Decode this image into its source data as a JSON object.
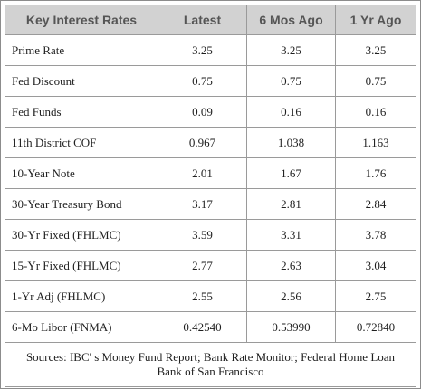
{
  "table": {
    "headers": [
      "Key Interest Rates",
      "Latest",
      "6 Mos Ago",
      "1 Yr Ago"
    ],
    "rows": [
      {
        "label": "Prime Rate",
        "latest": "3.25",
        "six_mos": "3.25",
        "one_yr": "3.25"
      },
      {
        "label": "Fed Discount",
        "latest": "0.75",
        "six_mos": "0.75",
        "one_yr": "0.75"
      },
      {
        "label": "Fed Funds",
        "latest": "0.09",
        "six_mos": "0.16",
        "one_yr": "0.16"
      },
      {
        "label": "11th District COF",
        "latest": "0.967",
        "six_mos": "1.038",
        "one_yr": "1.163"
      },
      {
        "label": "10-Year Note",
        "latest": "2.01",
        "six_mos": "1.67",
        "one_yr": "1.76"
      },
      {
        "label": "30-Year Treasury Bond",
        "latest": "3.17",
        "six_mos": "2.81",
        "one_yr": "2.84"
      },
      {
        "label": "30-Yr Fixed (FHLMC)",
        "latest": "3.59",
        "six_mos": "3.31",
        "one_yr": "3.78"
      },
      {
        "label": "15-Yr Fixed (FHLMC)",
        "latest": "2.77",
        "six_mos": "2.63",
        "one_yr": "3.04"
      },
      {
        "label": "1-Yr Adj (FHLMC)",
        "latest": "2.55",
        "six_mos": "2.56",
        "one_yr": "2.75"
      },
      {
        "label": "6-Mo Libor (FNMA)",
        "latest": "0.42540",
        "six_mos": "0.53990",
        "one_yr": "0.72840"
      }
    ],
    "sources": "Sources: IBC' s Money Fund Report; Bank Rate Monitor; Federal Home Loan Bank of San Francisco"
  },
  "colors": {
    "header_bg": "#d2d2d2",
    "header_text": "#555555",
    "border": "#9a9a9a"
  }
}
